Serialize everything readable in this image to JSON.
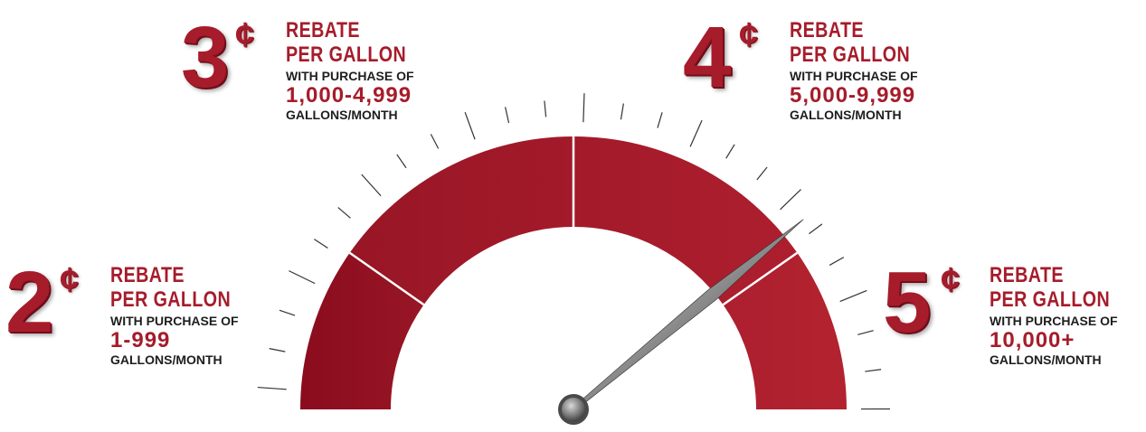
{
  "gauge": {
    "segments": [
      {
        "name": "tier-2c",
        "color_start": "#8a0c1d",
        "color_end": "#981626"
      },
      {
        "name": "tier-3c",
        "color_start": "#981626",
        "color_end": "#a31a2a"
      },
      {
        "name": "tier-4c",
        "color_start": "#a31a2a",
        "color_end": "#ad1f2f"
      },
      {
        "name": "tier-5c",
        "color_start": "#ad1f2f",
        "color_end": "#b3232f"
      }
    ],
    "needle_level": 0.78,
    "colors": {
      "accent": "#a61c2b",
      "text": "#1e1e1e",
      "tick": "#333333"
    }
  },
  "tiers": [
    {
      "amount": "2",
      "unit": "¢",
      "line1": "REBATE",
      "line2": "PER GALLON",
      "purchase": "WITH PURCHASE OF",
      "range": "1-999",
      "period": "GALLONS/MONTH"
    },
    {
      "amount": "3",
      "unit": "¢",
      "line1": "REBATE",
      "line2": "PER GALLON",
      "purchase": "WITH PURCHASE OF",
      "range": "1,000-4,999",
      "period": "GALLONS/MONTH"
    },
    {
      "amount": "4",
      "unit": "¢",
      "line1": "REBATE",
      "line2": "PER GALLON",
      "purchase": "WITH PURCHASE OF",
      "range": "5,000-9,999",
      "period": "GALLONS/MONTH"
    },
    {
      "amount": "5",
      "unit": "¢",
      "line1": "REBATE",
      "line2": "PER GALLON",
      "purchase": "WITH PURCHASE OF",
      "range": "10,000+",
      "period": "GALLONS/MONTH"
    }
  ]
}
